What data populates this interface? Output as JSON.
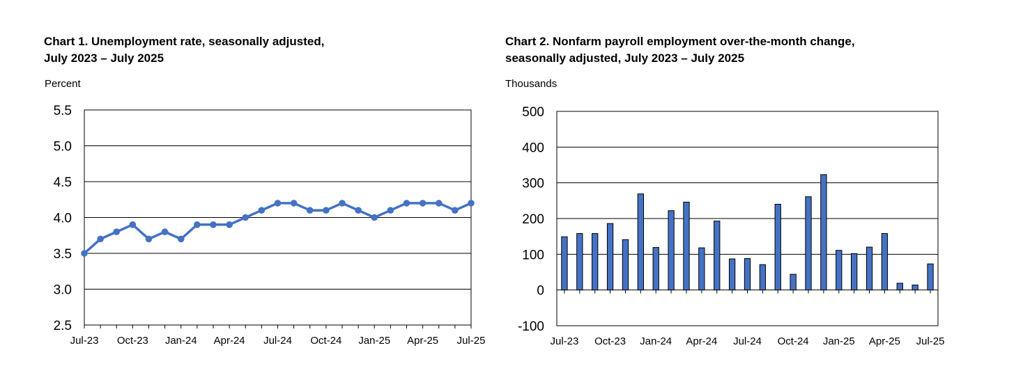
{
  "chart_data": [
    {
      "type": "line",
      "title": "Chart 1. Unemployment rate, seasonally adjusted,",
      "subtitle": "July 2023 – July 2025",
      "ylabel": "Percent",
      "xlabel": "",
      "ylim": [
        2.5,
        5.5
      ],
      "yticks": [
        2.5,
        3.0,
        3.5,
        4.0,
        4.5,
        5.0,
        5.5
      ],
      "y_tick_labels": [
        "2.5",
        "3.0",
        "3.5",
        "4.0",
        "4.5",
        "5.0",
        "5.5"
      ],
      "x": [
        "Jul-23",
        "Aug-23",
        "Sep-23",
        "Oct-23",
        "Nov-23",
        "Dec-23",
        "Jan-24",
        "Feb-24",
        "Mar-24",
        "Apr-24",
        "May-24",
        "Jun-24",
        "Jul-24",
        "Aug-24",
        "Sep-24",
        "Oct-24",
        "Nov-24",
        "Dec-24",
        "Jan-25",
        "Feb-25",
        "Mar-25",
        "Apr-25",
        "May-25",
        "Jun-25",
        "Jul-25"
      ],
      "x_tick_labels": [
        "Jul-23",
        "Oct-23",
        "Jan-24",
        "Apr-24",
        "Jul-24",
        "Oct-24",
        "Jan-25",
        "Apr-25",
        "Jul-25"
      ],
      "series": [
        {
          "values": [
            3.5,
            3.7,
            3.8,
            3.9,
            3.7,
            3.8,
            3.7,
            3.9,
            3.9,
            3.9,
            4.0,
            4.1,
            4.2,
            4.2,
            4.1,
            4.1,
            4.2,
            4.1,
            4.0,
            4.1,
            4.2,
            4.2,
            4.2,
            4.1,
            4.2
          ]
        }
      ],
      "grid": true,
      "color": "#4472C4"
    },
    {
      "type": "bar",
      "title": "Chart 2. Nonfarm payroll employment over-the-month change,",
      "subtitle": "seasonally adjusted, July 2023 – July 2025",
      "ylabel": "Thousands",
      "xlabel": "",
      "ylim": [
        -100,
        500
      ],
      "yticks": [
        -100,
        0,
        100,
        200,
        300,
        400,
        500
      ],
      "y_tick_labels": [
        "-100",
        "0",
        "100",
        "200",
        "300",
        "400",
        "500"
      ],
      "categories": [
        "Jul-23",
        "Aug-23",
        "Sep-23",
        "Oct-23",
        "Nov-23",
        "Dec-23",
        "Jan-24",
        "Feb-24",
        "Mar-24",
        "Apr-24",
        "May-24",
        "Jun-24",
        "Jul-24",
        "Aug-24",
        "Sep-24",
        "Oct-24",
        "Nov-24",
        "Dec-24",
        "Jan-25",
        "Feb-25",
        "Mar-25",
        "Apr-25",
        "May-25",
        "Jun-25",
        "Jul-25"
      ],
      "x_tick_labels": [
        "Jul-23",
        "Oct-23",
        "Jan-24",
        "Apr-24",
        "Jul-24",
        "Oct-24",
        "Jan-25",
        "Apr-25",
        "Jul-25"
      ],
      "values": [
        149,
        158,
        158,
        186,
        141,
        269,
        119,
        222,
        246,
        118,
        193,
        87,
        88,
        71,
        240,
        44,
        261,
        323,
        111,
        102,
        120,
        158,
        19,
        14,
        73
      ],
      "grid": true,
      "color": "#4472C4"
    }
  ]
}
